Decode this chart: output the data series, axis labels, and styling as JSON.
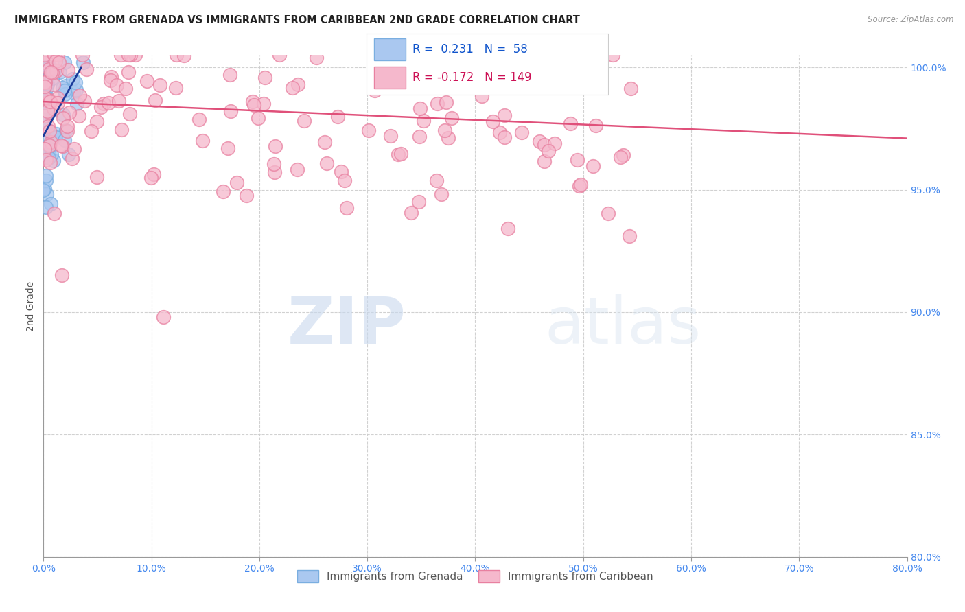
{
  "title": "IMMIGRANTS FROM GRENADA VS IMMIGRANTS FROM CARIBBEAN 2ND GRADE CORRELATION CHART",
  "source": "Source: ZipAtlas.com",
  "ylabel": "2nd Grade",
  "xlim": [
    0.0,
    80.0
  ],
  "ylim": [
    80.0,
    100.5
  ],
  "x_ticks": [
    0.0,
    10.0,
    20.0,
    30.0,
    40.0,
    50.0,
    60.0,
    70.0,
    80.0
  ],
  "y_ticks": [
    80.0,
    85.0,
    90.0,
    95.0,
    100.0
  ],
  "blue_R": 0.231,
  "blue_N": 58,
  "pink_R": -0.172,
  "pink_N": 149,
  "legend_label_blue": "Immigrants from Grenada",
  "legend_label_pink": "Immigrants from Caribbean",
  "blue_fill_color": "#aac8f0",
  "blue_edge_color": "#7aaee0",
  "pink_fill_color": "#f5b8cc",
  "pink_edge_color": "#e880a0",
  "blue_line_color": "#1a3a9a",
  "pink_line_color": "#e0507a",
  "watermark_zip": "ZIP",
  "watermark_atlas": "atlas",
  "title_fontsize": 10.5,
  "tick_color": "#4488ee",
  "background_color": "#ffffff",
  "grid_color": "#cccccc",
  "blue_trend_x": [
    0.0,
    3.5
  ],
  "blue_trend_y": [
    97.2,
    100.0
  ],
  "pink_trend_x": [
    0.0,
    80.0
  ],
  "pink_trend_y": [
    98.6,
    97.1
  ]
}
